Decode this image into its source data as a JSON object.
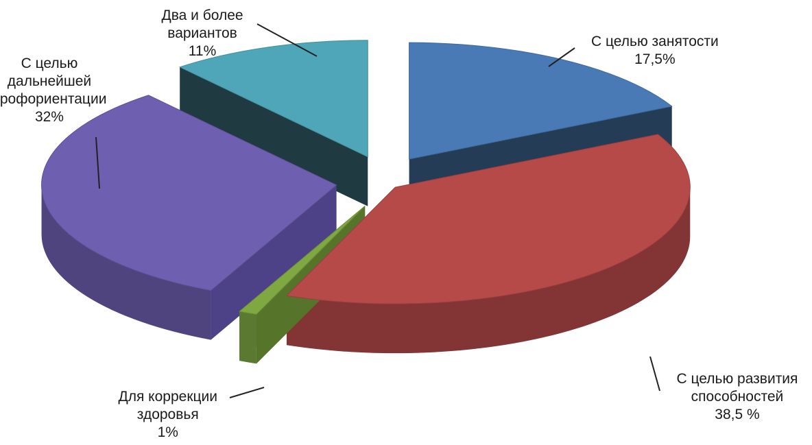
{
  "chart_data": {
    "type": "pie",
    "three_d": true,
    "exploded": true,
    "title": "",
    "slices": [
      {
        "label_lines": [
          "С целью занятости"
        ],
        "value": 17.5,
        "value_text": "17,5%",
        "color": "#4a7ab6",
        "side_color": "#253c57"
      },
      {
        "label_lines": [
          "С целью развития",
          "способностей"
        ],
        "value": 38.5,
        "value_text": "38,5 %",
        "color": "#b54a48",
        "side_color": "#7c2c2b"
      },
      {
        "label_lines": [
          "Для коррекции",
          "здоровья"
        ],
        "value": 1,
        "value_text": "1%",
        "color": "#7fa842",
        "side_color": "#56742a"
      },
      {
        "label_lines": [
          "С целью",
          "дальнейшей",
          "профориентации"
        ],
        "value": 32,
        "value_text": "32%",
        "color": "#6f5fb0",
        "side_color": "#4d4187"
      },
      {
        "label_lines": [
          "Два и более",
          "вариантов"
        ],
        "value": 11,
        "value_text": "11%",
        "color": "#4fa6b8",
        "side_color": "#1f3a40"
      }
    ]
  }
}
